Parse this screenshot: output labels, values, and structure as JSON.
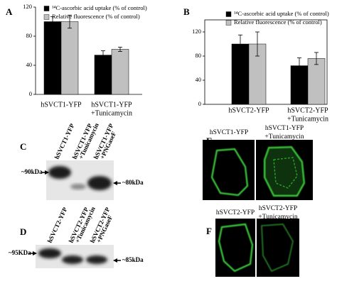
{
  "chart_data": [
    {
      "type": "bar",
      "panel": "A",
      "categories": [
        [
          "hSVCT1-YFP"
        ],
        [
          "hSVCT1-YFP",
          "+Tunicamycin"
        ]
      ],
      "series": [
        {
          "name": "¹⁴C-ascorbic acid uptake (% of control)",
          "color": "#000000",
          "values": [
            100,
            54
          ],
          "errors": [
            7,
            6
          ]
        },
        {
          "name": "Relative fluorescence (% of control)",
          "color": "#c0c0c0",
          "values": [
            100,
            62
          ],
          "errors": [
            9,
            3
          ]
        }
      ],
      "ylim": [
        0,
        120
      ],
      "yticks": [
        0,
        40,
        80,
        120
      ],
      "frame": false
    },
    {
      "type": "bar",
      "panel": "B",
      "categories": [
        [
          "hSVCT2-YFP"
        ],
        [
          "hSVCT2-YFP",
          "+Tunicamycin"
        ]
      ],
      "series": [
        {
          "name": "¹⁴C-ascorbic acid uptake (% of control)",
          "color": "#000000",
          "values": [
            100,
            64
          ],
          "errors": [
            15,
            13
          ]
        },
        {
          "name": "Relative fluorescence (% of control)",
          "color": "#c0c0c0",
          "values": [
            100,
            76
          ],
          "errors": [
            20,
            10
          ]
        }
      ],
      "ylim": [
        0,
        140
      ],
      "yticks": [
        0,
        40,
        80,
        120
      ],
      "frame": true
    }
  ],
  "blots": [
    {
      "panel": "C",
      "lanes": [
        [
          "hSVCT1-YFP"
        ],
        [
          "hSVCT1-YFP",
          "+Tunicamycin"
        ],
        [
          "hSVCT1-YFP",
          "+PNGaseF"
        ]
      ],
      "left_marker": "~90kDa",
      "right_marker": "~80kDa"
    },
    {
      "panel": "D",
      "lanes": [
        [
          "hSVCT2-YFP"
        ],
        [
          "hSVCT2-YFP",
          "+Tunicamycin"
        ],
        [
          "hSVCT2-YFP",
          "+PNGaseF"
        ]
      ],
      "left_marker": "~95KDa",
      "right_marker": "~85kDa"
    }
  ],
  "images": [
    {
      "panel": "E",
      "labels": [
        [
          "hSVCT1-YFP"
        ],
        [
          "hSVCT1-YFP",
          "+Tunicamycin"
        ]
      ]
    },
    {
      "panel": "F",
      "labels": [
        [
          "hSVCT2-YFP"
        ],
        [
          "hSVCT2-YFP",
          "+Tunicamycin"
        ]
      ]
    }
  ]
}
